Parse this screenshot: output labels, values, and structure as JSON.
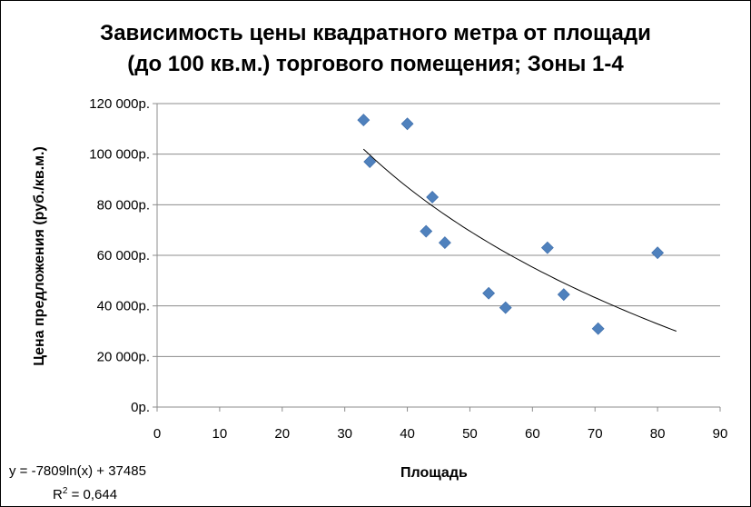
{
  "chart_data": {
    "type": "scatter",
    "title": "Зависимость цены квадратного метра от площади\n(до 100 кв.м.) торгового помещения; Зоны 1-4",
    "xlabel": "Площадь",
    "ylabel": "Цена предложения (руб./кв.м.)",
    "xlim": [
      0,
      90
    ],
    "ylim": [
      0,
      120000
    ],
    "x_ticks": [
      "0",
      "10",
      "20",
      "30",
      "40",
      "50",
      "60",
      "70",
      "80",
      "90"
    ],
    "y_ticks": [
      "0р.",
      "20 000р.",
      "40 000р.",
      "60 000р.",
      "80 000р.",
      "100 000р.",
      "120 000р."
    ],
    "grid": "horizontal",
    "marker_color": "#4F81BD",
    "points": [
      {
        "x": 33,
        "y": 113500
      },
      {
        "x": 34,
        "y": 97000
      },
      {
        "x": 40,
        "y": 112000
      },
      {
        "x": 43,
        "y": 69500
      },
      {
        "x": 44,
        "y": 83000
      },
      {
        "x": 46,
        "y": 65000
      },
      {
        "x": 53,
        "y": 45000
      },
      {
        "x": 55.7,
        "y": 39300
      },
      {
        "x": 62.4,
        "y": 63000
      },
      {
        "x": 65,
        "y": 44500
      },
      {
        "x": 70.5,
        "y": 31000
      },
      {
        "x": 80,
        "y": 61000
      }
    ],
    "trendline": {
      "type": "log",
      "equation": "y = -7809ln(x) + 37485",
      "r2_label": "R",
      "r2_value": " = 0,644",
      "r2_sup": "2"
    }
  }
}
